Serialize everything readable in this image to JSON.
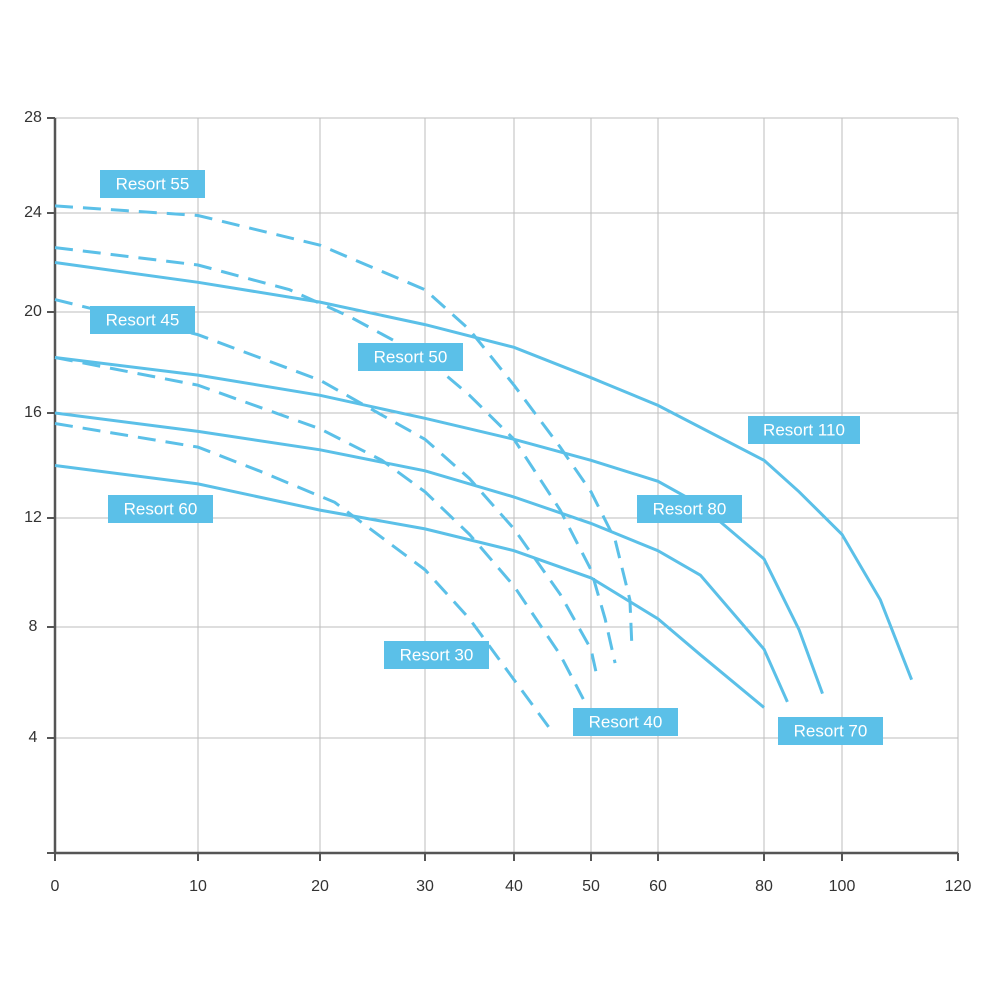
{
  "chart_data": {
    "type": "line",
    "xlim": [
      0,
      120
    ],
    "xticks": [
      0,
      10,
      20,
      30,
      40,
      50,
      60,
      80,
      100,
      120
    ],
    "ylim": [
      0,
      28
    ],
    "yticks": [
      0,
      4,
      8,
      12,
      16,
      20,
      24,
      28
    ],
    "grid": true,
    "series": [
      {
        "name": "Resort 55",
        "color": "#5bc0e8",
        "line_style": "dashed",
        "x": [
          0,
          10,
          20,
          30,
          35,
          40,
          46,
          50,
          53.6,
          55.8,
          56.1
        ],
        "values": [
          24.3,
          23.9,
          22.7,
          20.9,
          19.3,
          17.1,
          14.7,
          13.0,
          11.2,
          9.0,
          7.3
        ]
      },
      {
        "name": "Resort 50",
        "color": "#5bc0e8",
        "line_style": "dashed",
        "x": [
          0,
          10,
          17.5,
          22.9,
          30,
          35,
          40,
          46,
          50,
          52.1,
          53.6
        ],
        "values": [
          22.6,
          21.9,
          20.9,
          19.8,
          18.2,
          16.7,
          15.0,
          12.3,
          10.1,
          8.3,
          6.7
        ]
      },
      {
        "name": "Resort 45",
        "color": "#5bc0e8",
        "line_style": "dashed",
        "x": [
          0,
          10,
          20,
          30,
          35,
          40,
          46,
          50,
          51
        ],
        "values": [
          20.5,
          19.1,
          17.3,
          15.0,
          13.5,
          11.6,
          9.2,
          7.2,
          6.1
        ]
      },
      {
        "name": "Resort 40",
        "color": "#5bc0e8",
        "line_style": "dashed",
        "x": [
          0,
          10,
          20,
          25.9,
          30,
          35,
          40,
          46,
          49
        ],
        "values": [
          18.2,
          17.1,
          15.4,
          14.2,
          13.0,
          11.4,
          9.5,
          7.0,
          5.4
        ]
      },
      {
        "name": "Resort 30",
        "color": "#5bc0e8",
        "line_style": "dashed",
        "x": [
          0,
          10,
          15,
          21.4,
          30,
          35,
          40,
          44.5
        ],
        "values": [
          15.6,
          14.7,
          13.8,
          12.6,
          10.1,
          8.3,
          6.1,
          4.4
        ]
      },
      {
        "name": "Resort 110",
        "color": "#5bc0e8",
        "line_style": "solid",
        "x": [
          0,
          10,
          20,
          30,
          40,
          50,
          60,
          80,
          89,
          100,
          106.6,
          112
        ],
        "values": [
          22.0,
          21.2,
          20.4,
          19.5,
          18.6,
          17.4,
          16.3,
          14.2,
          13.0,
          11.4,
          9.0,
          6.1
        ]
      },
      {
        "name": "Resort 80",
        "color": "#5bc0e8",
        "line_style": "solid",
        "x": [
          0,
          10,
          20,
          30,
          40,
          50,
          60,
          68,
          80,
          89,
          95
        ],
        "values": [
          18.2,
          17.5,
          16.7,
          15.8,
          15.0,
          14.2,
          13.4,
          12.5,
          10.5,
          7.9,
          5.6
        ]
      },
      {
        "name": "Resort 70",
        "color": "#5bc0e8",
        "line_style": "solid",
        "x": [
          0,
          10,
          20,
          30,
          40,
          50,
          60,
          68,
          80,
          86
        ],
        "values": [
          16.0,
          15.3,
          14.6,
          13.8,
          12.8,
          11.8,
          10.8,
          9.9,
          7.2,
          5.3
        ]
      },
      {
        "name": "Resort 60",
        "color": "#5bc0e8",
        "line_style": "solid",
        "x": [
          0,
          10,
          20,
          30,
          40,
          50,
          60,
          68,
          80
        ],
        "values": [
          14.0,
          13.3,
          12.3,
          11.6,
          10.8,
          9.8,
          8.3,
          7.0,
          5.1
        ]
      }
    ]
  }
}
